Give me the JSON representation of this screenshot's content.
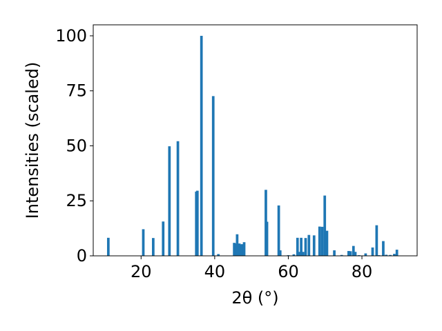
{
  "chart_data": {
    "type": "bar",
    "xlabel": "2θ (°)",
    "ylabel": "Intensities (scaled)",
    "xlim": [
      7,
      95
    ],
    "ylim": [
      0,
      105
    ],
    "x_ticks": [
      20,
      40,
      60,
      80
    ],
    "y_ticks": [
      0,
      25,
      50,
      75,
      100
    ],
    "grid": false,
    "legend": "none",
    "bar_color": "#1f77b4",
    "bar_width": 0.7,
    "x": [
      11.1,
      20.6,
      23.3,
      26.0,
      27.7,
      30.0,
      35.0,
      35.3,
      36.4,
      39.6,
      41.0,
      45.3,
      45.7,
      46.1,
      46.7,
      47.1,
      47.5,
      48.0,
      53.9,
      54.2,
      57.4,
      57.8,
      60.0,
      61.5,
      62.5,
      63.0,
      63.5,
      64.0,
      64.7,
      65.6,
      67.0,
      68.5,
      69.2,
      69.9,
      70.5,
      72.5,
      74.5,
      76.4,
      76.9,
      77.7,
      78.2,
      79.2,
      81.0,
      82.9,
      84.0,
      84.6,
      85.8,
      86.6,
      87.7,
      88.8,
      89.5
    ],
    "values": [
      8.2,
      12.1,
      8.1,
      15.6,
      49.8,
      52.1,
      29.2,
      29.6,
      100,
      72.6,
      0.8,
      5.9,
      5.6,
      9.8,
      5.6,
      5.2,
      5.3,
      6.2,
      30.0,
      15.5,
      22.9,
      2.5,
      0.3,
      0.7,
      8.2,
      1.8,
      8.2,
      1.8,
      8.1,
      9.5,
      9.3,
      13.3,
      13.2,
      27.4,
      11.4,
      2.5,
      0.4,
      2.2,
      2.1,
      4.5,
      1.8,
      0.3,
      1.1,
      3.8,
      13.9,
      0.3,
      6.7,
      0.5,
      0.4,
      0.9,
      2.8
    ]
  }
}
